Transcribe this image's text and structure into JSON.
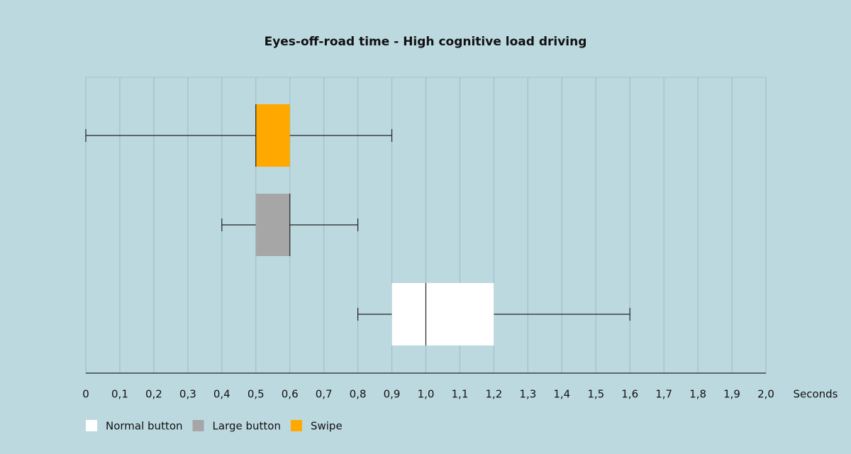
{
  "chart_data": {
    "type": "boxplot",
    "title": "Eyes-off-road time - High cognitive load driving",
    "x_label": "Seconds",
    "xlim": [
      0,
      2
    ],
    "xticks": [
      0,
      {
        "value": 0.1,
        "label": "0,1"
      },
      {
        "value": 0.2,
        "label": "0,2"
      },
      {
        "value": 0.3,
        "label": "0,3"
      },
      {
        "value": 0.4,
        "label": "0,4"
      },
      {
        "value": 0.5,
        "label": "0,5"
      },
      {
        "value": 0.6,
        "label": "0,6"
      },
      {
        "value": 0.7,
        "label": "0,7"
      },
      {
        "value": 0.8,
        "label": "0,8"
      },
      {
        "value": 0.9,
        "label": "0,9"
      },
      {
        "value": 1.0,
        "label": "1,0"
      },
      {
        "value": 1.1,
        "label": "1,1"
      },
      {
        "value": 1.2,
        "label": "1,2"
      },
      {
        "value": 1.3,
        "label": "1,3"
      },
      {
        "value": 1.4,
        "label": "1,4"
      },
      {
        "value": 1.5,
        "label": "1,5"
      },
      {
        "value": 1.6,
        "label": "1,6"
      },
      {
        "value": 1.7,
        "label": "1,7"
      },
      {
        "value": 1.8,
        "label": "1,8"
      },
      {
        "value": 1.9,
        "label": "1,9"
      },
      {
        "value": 2.0,
        "label": "2,0"
      }
    ],
    "grid": true,
    "series": [
      {
        "name": "Swipe",
        "color": "#ffa800",
        "min": 0,
        "q1": 0.5,
        "median": 0.5,
        "q3": 0.6,
        "max": 0.9
      },
      {
        "name": "Large button",
        "color": "#a6a6a6",
        "min": 0.4,
        "q1": 0.5,
        "median": 0.6,
        "q3": 0.6,
        "max": 0.8
      },
      {
        "name": "Normal button",
        "color": "#ffffff",
        "min": 0.8,
        "q1": 0.9,
        "median": 1.0,
        "q3": 1.2,
        "max": 1.6
      }
    ]
  }
}
